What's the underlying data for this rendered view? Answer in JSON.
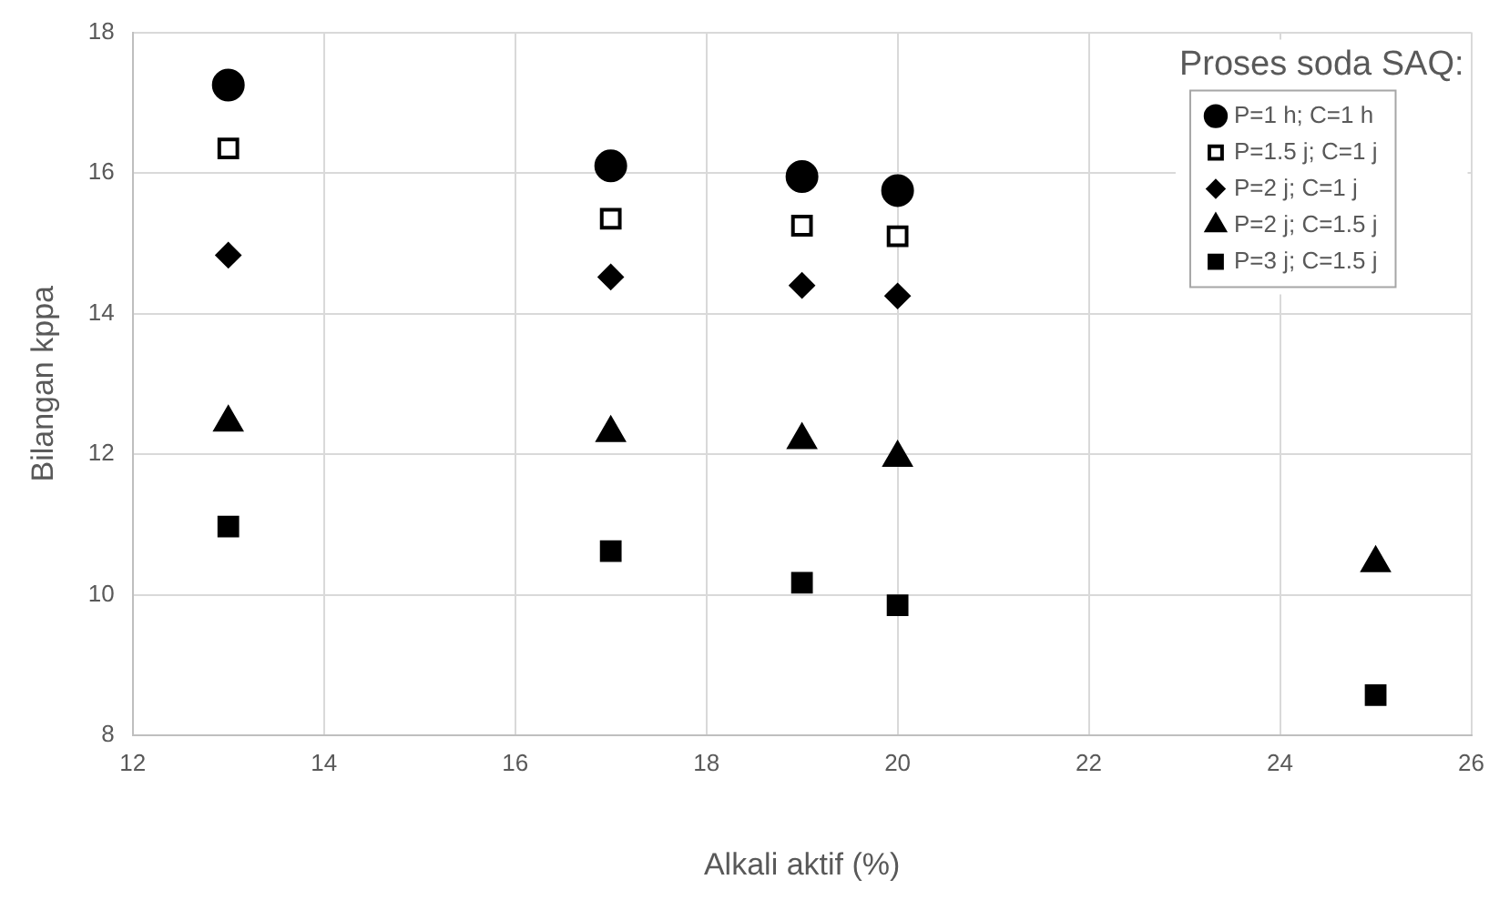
{
  "chart_data": {
    "type": "scatter",
    "xlabel": "Alkali aktif (%)",
    "ylabel": "Bilangan kppa",
    "legend_title": "Proses soda SAQ:",
    "legend": "top right",
    "grid": true,
    "xlim": [
      12,
      26
    ],
    "xticks": [
      12,
      14,
      16,
      18,
      20,
      22,
      24,
      26
    ],
    "ylim": [
      8,
      18
    ],
    "yticks": [
      8,
      10,
      12,
      14,
      16,
      18
    ],
    "series": [
      {
        "name": "P=1 h; C=1 h",
        "color": "#000000",
        "marker": "circle",
        "x": [
          13,
          17,
          19,
          20
        ],
        "values": [
          17.25,
          16.1,
          15.95,
          15.75
        ]
      },
      {
        "name": "P=1.5 j; C=1 j",
        "color": "#ffffff",
        "marker": "square",
        "x": [
          13,
          17,
          19,
          20
        ],
        "values": [
          16.35,
          15.35,
          15.25,
          15.1
        ]
      },
      {
        "name": "P=2 j; C=1 j",
        "color": "#000000",
        "marker": "diamond",
        "x": [
          13,
          17,
          19,
          20
        ],
        "values": [
          14.83,
          14.52,
          14.4,
          14.25
        ]
      },
      {
        "name": "P=2 j; C=1.5 j",
        "color": "#000000",
        "marker": "triangle",
        "x": [
          13,
          17,
          19,
          20,
          25
        ],
        "values": [
          12.45,
          12.3,
          12.2,
          11.95,
          10.45
        ]
      },
      {
        "name": "P=3 j; C=1.5 j",
        "color": "#000000",
        "marker": "square",
        "x": [
          13,
          17,
          19,
          20,
          25
        ],
        "values": [
          10.97,
          10.62,
          10.17,
          9.85,
          8.57
        ]
      }
    ]
  }
}
